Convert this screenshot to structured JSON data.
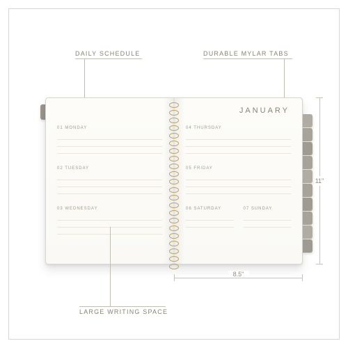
{
  "palette": {
    "frame_border": "#d9d7d2",
    "page_bg_top": "#fdfcf9",
    "page_bg_bottom": "#faf9f5",
    "rule": "#eae6de",
    "spiral": "#b9a46a",
    "text_muted": "#8a8377",
    "lead": "#c2bdb2",
    "left_tab": "#9b968e"
  },
  "planner": {
    "month": "JANUARY",
    "left_page_sections": [
      {
        "label": "01  MONDAY",
        "lines": 3
      },
      {
        "label": "02  TUESDAY",
        "lines": 3
      },
      {
        "label": "03  WEDNESDAY",
        "lines": 3
      }
    ],
    "right_page_sections": [
      {
        "label": "04  THURSDAY",
        "lines": 3
      },
      {
        "label": "05  FRIDAY",
        "lines": 3
      }
    ],
    "weekend": {
      "left": {
        "label": "06  SATURDAY",
        "lines": 2
      },
      "right": {
        "label": "07  SUNDAY",
        "lines": 2
      }
    }
  },
  "tabs": {
    "colors": [
      "#b1aca3",
      "#a8a39a",
      "#a09b92",
      "#a8a39a",
      "#b1aca3",
      "#a8a39a",
      "#a09b92",
      "#a8a39a",
      "#b1aca3",
      "#a09b92"
    ]
  },
  "dimensions": {
    "width_label": "8.5\"",
    "height_label": "11\""
  },
  "callouts": {
    "daily_schedule": "DAILY SCHEDULE",
    "mylar_tabs": "DURABLE MYLAR TABS",
    "writing_space": "LARGE WRITING SPACE"
  },
  "spiral": {
    "ring_count": 22
  }
}
